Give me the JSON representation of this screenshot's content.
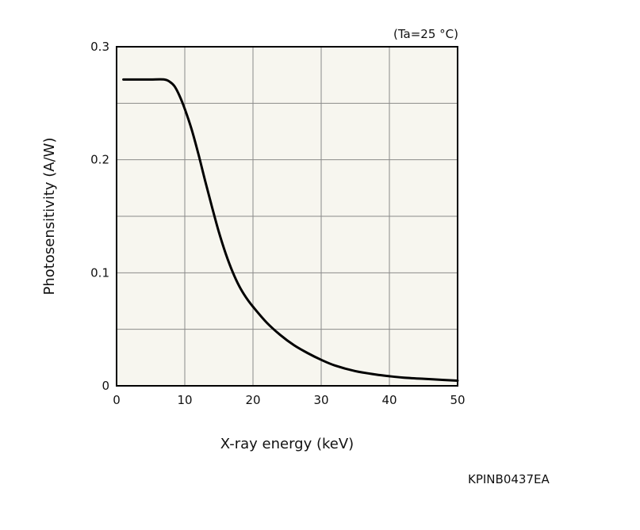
{
  "chart_data": {
    "type": "line",
    "xlabel": "X-ray energy (keV)",
    "ylabel": "Photosensitivity (A/W)",
    "annotation": "(Ta=25 °C)",
    "xlim": [
      0,
      50
    ],
    "ylim": [
      0,
      0.3
    ],
    "x_ticks": [
      0,
      10,
      20,
      30,
      40,
      50
    ],
    "x_tick_labels": [
      "0",
      "10",
      "20",
      "30",
      "40",
      "50"
    ],
    "y_ticks": [
      0,
      0.1,
      0.2,
      0.3
    ],
    "y_tick_labels": [
      "0",
      "0.1",
      "0.2",
      "0.3"
    ],
    "grid": true,
    "x_grid_step": 10,
    "y_grid_step": 0.05,
    "plot_background": "#f7f6ef",
    "line_color": "#000000",
    "series": [
      {
        "x": [
          1,
          3,
          5,
          7,
          7.8,
          8.5,
          9.2,
          10,
          11,
          12,
          13,
          14,
          15,
          16,
          17,
          18,
          19,
          20,
          22,
          24,
          26,
          28,
          30,
          32,
          35,
          38,
          40,
          42,
          45,
          48,
          50
        ],
        "y": [
          0.271,
          0.271,
          0.271,
          0.271,
          0.269,
          0.265,
          0.257,
          0.245,
          0.227,
          0.205,
          0.181,
          0.158,
          0.136,
          0.117,
          0.101,
          0.088,
          0.078,
          0.07,
          0.056,
          0.045,
          0.036,
          0.029,
          0.023,
          0.018,
          0.013,
          0.01,
          0.0085,
          0.0073,
          0.0062,
          0.0052,
          0.0046
        ]
      }
    ]
  },
  "footer": {
    "code": "KPINB0437EA"
  }
}
